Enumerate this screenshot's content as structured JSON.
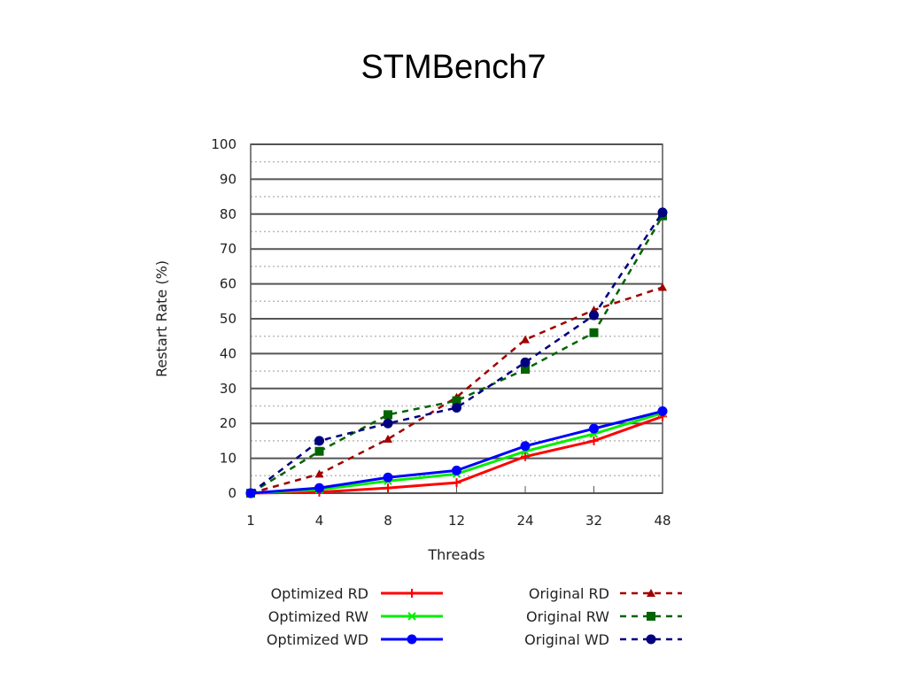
{
  "title": "STMBench7",
  "chart_data": {
    "type": "line",
    "title": "STMBench7",
    "xlabel": "Threads",
    "ylabel": "Restart Rate (%)",
    "categories": [
      "1",
      "4",
      "8",
      "12",
      "24",
      "32",
      "48"
    ],
    "ylim": [
      0,
      100
    ],
    "yticks": [
      "0",
      "10",
      "20",
      "30",
      "40",
      "50",
      "60",
      "70",
      "80",
      "90",
      "100"
    ],
    "grid": true,
    "legend_position": "bottom",
    "series": [
      {
        "name": "Optimized RD",
        "color": "#ff0000",
        "dash": false,
        "marker": "plus",
        "values": [
          0,
          0.3,
          1.5,
          3,
          10.5,
          15,
          22
        ]
      },
      {
        "name": "Optimized RW",
        "color": "#00ee00",
        "dash": false,
        "marker": "x",
        "values": [
          0,
          1,
          3.5,
          5.5,
          12,
          17,
          23
        ]
      },
      {
        "name": "Optimized WD",
        "color": "#0000ff",
        "dash": false,
        "marker": "star",
        "values": [
          0,
          1.5,
          4.5,
          6.5,
          13.5,
          18.5,
          23.5
        ]
      },
      {
        "name": "Original RD",
        "color": "#a00000",
        "dash": true,
        "marker": "triangle",
        "values": [
          0,
          5.5,
          15.5,
          27.5,
          44,
          52.5,
          59
        ]
      },
      {
        "name": "Original RW",
        "color": "#006400",
        "dash": true,
        "marker": "square",
        "values": [
          0,
          12,
          22.5,
          26.5,
          35.5,
          46,
          79.5
        ]
      },
      {
        "name": "Original WD",
        "color": "#000080",
        "dash": true,
        "marker": "circle",
        "values": [
          0,
          15,
          20,
          24.5,
          37.5,
          51,
          80.5
        ]
      }
    ]
  }
}
